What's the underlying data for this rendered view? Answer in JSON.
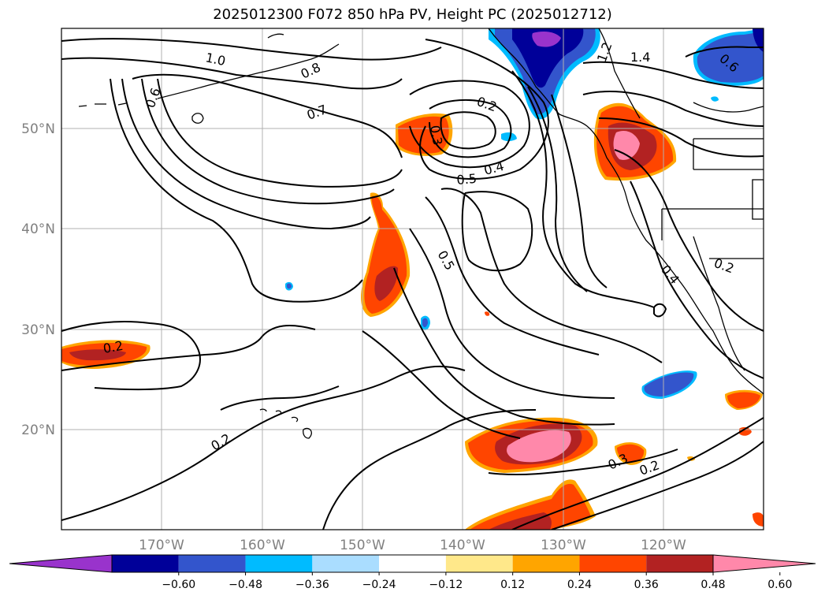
{
  "title": "2025012300 F072 850 hPa PV, Height PC (2025012712)",
  "latitude_labels": [
    "50°N",
    "40°N",
    "30°N",
    "20°N"
  ],
  "longitude_labels": [
    "170°W",
    "160°W",
    "150°W",
    "140°W",
    "130°W",
    "120°W"
  ],
  "colorbar": {
    "colors": [
      "#9933cc",
      "#000099",
      "#3355cc",
      "#00bbff",
      "#aaddff",
      "#ffffff",
      "#ffe88a",
      "#ffa500",
      "#ff4500",
      "#b22222",
      "#ff88aa"
    ],
    "tick_labels": [
      "−0.60",
      "−0.48",
      "−0.36",
      "−0.24",
      "−0.12",
      "0.12",
      "0.24",
      "0.36",
      "0.48",
      "0.60"
    ]
  },
  "contour_labels": [
    "1.0",
    "0.8",
    "0.6",
    "0.7",
    "0.2",
    "0.3",
    "0.5",
    "0.4",
    "1.4",
    "1.2",
    "0.6",
    "0.2",
    "0.5",
    "0.4",
    "0.2",
    "0.2",
    "0.3",
    "0.2"
  ],
  "colors": {
    "grid": "#b0b0b0",
    "axis_text": "#808080"
  }
}
